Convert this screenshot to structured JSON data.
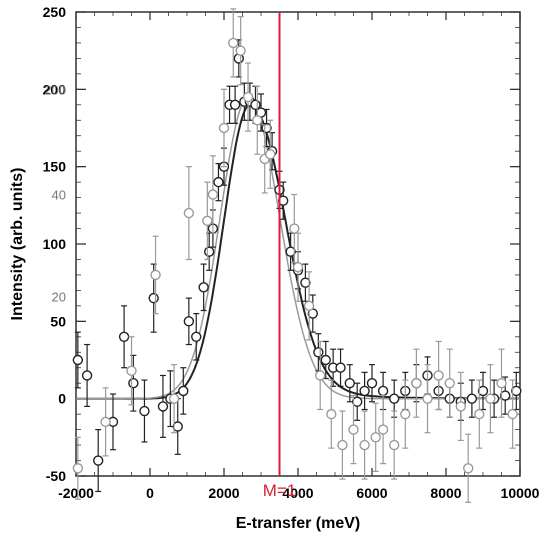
{
  "chart_data": {
    "type": "scatter",
    "title": "",
    "xlabel": "E-transfer (meV)",
    "ylabel": "Intensity  (arb. units)",
    "xlim": [
      -2000,
      10000
    ],
    "ylim": [
      -50,
      250
    ],
    "x_ticks": [
      "-2000",
      "0",
      "2000",
      "4000",
      "6000",
      "8000",
      "10000"
    ],
    "y_ticks": [
      "-50",
      "0",
      "50",
      "100",
      "150",
      "200",
      "250"
    ],
    "y_ticks_faint": [
      "20",
      "40",
      "200"
    ],
    "grid": false,
    "marker_line": {
      "x": 3500,
      "label": "M=1",
      "color": "#d42030"
    },
    "series": [
      {
        "style": "dark",
        "points": [
          {
            "x": -1950,
            "y": 25,
            "e": 18
          },
          {
            "x": -1700,
            "y": 15,
            "e": 20
          },
          {
            "x": -1400,
            "y": -40,
            "e": 20
          },
          {
            "x": -1000,
            "y": -15,
            "e": 18
          },
          {
            "x": -700,
            "y": 40,
            "e": 20
          },
          {
            "x": -450,
            "y": 10,
            "e": 18
          },
          {
            "x": -150,
            "y": -8,
            "e": 20
          },
          {
            "x": 100,
            "y": 65,
            "e": 22
          },
          {
            "x": 350,
            "y": -5,
            "e": 20
          },
          {
            "x": 550,
            "y": 0,
            "e": 18
          },
          {
            "x": 750,
            "y": -18,
            "e": 18
          },
          {
            "x": 900,
            "y": 5,
            "e": 15
          },
          {
            "x": 1050,
            "y": 50,
            "e": 15
          },
          {
            "x": 1250,
            "y": 40,
            "e": 15
          },
          {
            "x": 1450,
            "y": 72,
            "e": 15
          },
          {
            "x": 1600,
            "y": 95,
            "e": 12
          },
          {
            "x": 1700,
            "y": 110,
            "e": 12
          },
          {
            "x": 1850,
            "y": 140,
            "e": 12
          },
          {
            "x": 2000,
            "y": 150,
            "e": 12
          },
          {
            "x": 2150,
            "y": 190,
            "e": 12
          },
          {
            "x": 2300,
            "y": 190,
            "e": 12
          },
          {
            "x": 2400,
            "y": 220,
            "e": 12
          },
          {
            "x": 2550,
            "y": 192,
            "e": 12
          },
          {
            "x": 2700,
            "y": 192,
            "e": 12
          },
          {
            "x": 2850,
            "y": 190,
            "e": 12
          },
          {
            "x": 3000,
            "y": 185,
            "e": 12
          },
          {
            "x": 3150,
            "y": 175,
            "e": 12
          },
          {
            "x": 3300,
            "y": 160,
            "e": 12
          },
          {
            "x": 3500,
            "y": 135,
            "e": 12
          },
          {
            "x": 3600,
            "y": 128,
            "e": 12
          },
          {
            "x": 3800,
            "y": 95,
            "e": 12
          },
          {
            "x": 4000,
            "y": 83,
            "e": 12
          },
          {
            "x": 4200,
            "y": 75,
            "e": 12
          },
          {
            "x": 4400,
            "y": 55,
            "e": 12
          },
          {
            "x": 4550,
            "y": 30,
            "e": 12
          },
          {
            "x": 4750,
            "y": 25,
            "e": 12
          },
          {
            "x": 4950,
            "y": 20,
            "e": 12
          },
          {
            "x": 5150,
            "y": 20,
            "e": 12
          },
          {
            "x": 5400,
            "y": 10,
            "e": 12
          },
          {
            "x": 5600,
            "y": -2,
            "e": 12
          },
          {
            "x": 5800,
            "y": 5,
            "e": 12
          },
          {
            "x": 6000,
            "y": 10,
            "e": 12
          },
          {
            "x": 6300,
            "y": 5,
            "e": 12
          },
          {
            "x": 6600,
            "y": 0,
            "e": 12
          },
          {
            "x": 6900,
            "y": 5,
            "e": 12
          },
          {
            "x": 7200,
            "y": 10,
            "e": 12
          },
          {
            "x": 7500,
            "y": 15,
            "e": 12
          },
          {
            "x": 7800,
            "y": 5,
            "e": 12
          },
          {
            "x": 8100,
            "y": 0,
            "e": 12
          },
          {
            "x": 8400,
            "y": -2,
            "e": 12
          },
          {
            "x": 8700,
            "y": 0,
            "e": 12
          },
          {
            "x": 9000,
            "y": 5,
            "e": 12
          },
          {
            "x": 9300,
            "y": 0,
            "e": 12
          },
          {
            "x": 9600,
            "y": 2,
            "e": 12
          },
          {
            "x": 9900,
            "y": 5,
            "e": 12
          }
        ]
      },
      {
        "style": "light",
        "points": [
          {
            "x": -1950,
            "y": -45,
            "e": 20
          },
          {
            "x": -1200,
            "y": -15,
            "e": 22
          },
          {
            "x": -500,
            "y": 18,
            "e": 22
          },
          {
            "x": 150,
            "y": 80,
            "e": 25
          },
          {
            "x": 650,
            "y": 0,
            "e": 22
          },
          {
            "x": 1050,
            "y": 120,
            "e": 30
          },
          {
            "x": 1550,
            "y": 115,
            "e": 25
          },
          {
            "x": 1700,
            "y": 132,
            "e": 25
          },
          {
            "x": 2000,
            "y": 175,
            "e": 25
          },
          {
            "x": 2250,
            "y": 230,
            "e": 22
          },
          {
            "x": 2450,
            "y": 225,
            "e": 22
          },
          {
            "x": 2650,
            "y": 195,
            "e": 22
          },
          {
            "x": 2900,
            "y": 180,
            "e": 22
          },
          {
            "x": 3100,
            "y": 155,
            "e": 22
          },
          {
            "x": 3250,
            "y": 158,
            "e": 22
          },
          {
            "x": 3900,
            "y": 110,
            "e": 22
          },
          {
            "x": 4000,
            "y": 85,
            "e": 22
          },
          {
            "x": 4300,
            "y": 60,
            "e": 22
          },
          {
            "x": 4600,
            "y": 15,
            "e": 22
          },
          {
            "x": 4900,
            "y": -10,
            "e": 22
          },
          {
            "x": 5200,
            "y": -30,
            "e": 22
          },
          {
            "x": 5500,
            "y": -20,
            "e": 22
          },
          {
            "x": 5800,
            "y": -30,
            "e": 22
          },
          {
            "x": 6100,
            "y": -25,
            "e": 22
          },
          {
            "x": 6300,
            "y": -20,
            "e": 22
          },
          {
            "x": 6600,
            "y": -30,
            "e": 22
          },
          {
            "x": 6900,
            "y": -10,
            "e": 22
          },
          {
            "x": 7200,
            "y": 10,
            "e": 22
          },
          {
            "x": 7500,
            "y": 0,
            "e": 22
          },
          {
            "x": 7800,
            "y": 15,
            "e": 22
          },
          {
            "x": 8100,
            "y": 10,
            "e": 22
          },
          {
            "x": 8400,
            "y": -5,
            "e": 22
          },
          {
            "x": 8600,
            "y": -45,
            "e": 22
          },
          {
            "x": 8900,
            "y": -10,
            "e": 22
          },
          {
            "x": 9200,
            "y": 0,
            "e": 22
          },
          {
            "x": 9500,
            "y": 10,
            "e": 22
          },
          {
            "x": 9800,
            "y": -10,
            "e": 22
          }
        ]
      }
    ],
    "fits": [
      {
        "style": "dark",
        "baseline": 0,
        "amplitude": 190,
        "center": 2700,
        "sigma_left": 700,
        "sigma_right": 900,
        "tail": 0.12
      },
      {
        "style": "light",
        "baseline": 0,
        "amplitude": 195,
        "center": 2650,
        "sigma_left": 750,
        "sigma_right": 850,
        "tail": 0.0
      }
    ],
    "colors": {
      "dark": "#222222",
      "light": "#9a9a9a",
      "marker": "#d42030"
    }
  }
}
